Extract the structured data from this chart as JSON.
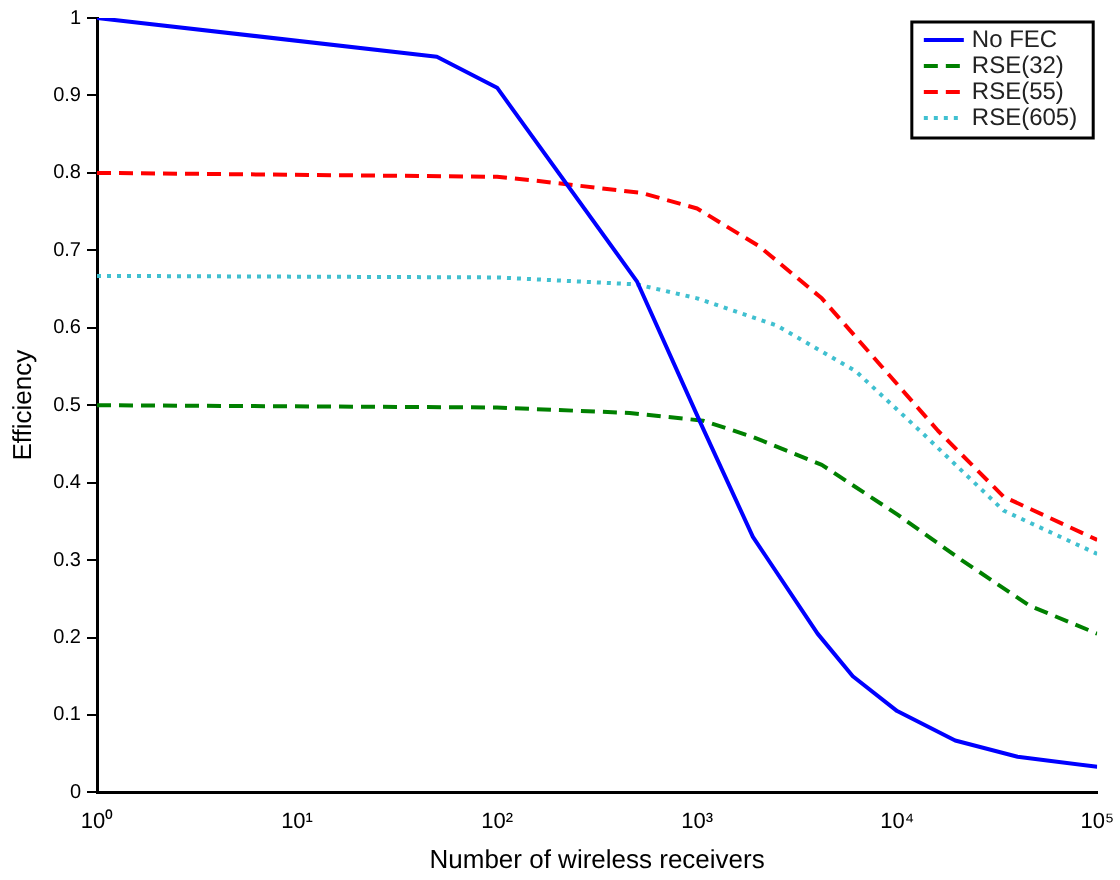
{
  "chart_data": {
    "type": "line",
    "xlabel": "Number of wireless receivers",
    "ylabel": "Efficiency",
    "log": "x",
    "xlim": [
      1,
      100000
    ],
    "ylim": [
      0,
      1
    ],
    "xticks": [
      {
        "value": 1,
        "label": "10⁰"
      },
      {
        "value": 10,
        "label": "10¹"
      },
      {
        "value": 100,
        "label": "10²"
      },
      {
        "value": 1000,
        "label": "10³"
      },
      {
        "value": 10000,
        "label": "10⁴"
      },
      {
        "value": 100000,
        "label": "10⁵"
      }
    ],
    "yticks": [
      0,
      0.1,
      0.2,
      0.3,
      0.4,
      0.5,
      0.6,
      0.7,
      0.8,
      0.9,
      1
    ],
    "grid": false,
    "legend": "top right",
    "marker": "none",
    "series": [
      {
        "name": "No FEC",
        "color": "#0000ff",
        "line_style": "solid",
        "x": [
          1,
          50,
          100,
          500,
          1070,
          1900,
          4000,
          6000,
          10000,
          19500,
          40000,
          100000
        ],
        "values": [
          1,
          0.95,
          0.91,
          0.66,
          0.47,
          0.33,
          0.205,
          0.15,
          0.105,
          0.067,
          0.046,
          0.033
        ]
      },
      {
        "name": "RSE(32)",
        "color": "#008000",
        "line_style": "dashed",
        "x": [
          1,
          100,
          460,
          1070,
          1900,
          4200,
          10000,
          21000,
          46000,
          100000
        ],
        "values": [
          0.5,
          0.497,
          0.49,
          0.48,
          0.459,
          0.423,
          0.359,
          0.3,
          0.241,
          0.205
        ]
      },
      {
        "name": "RSE(55)",
        "color": "#ff0000",
        "line_style": "dashed",
        "x": [
          1,
          100,
          155,
          530,
          1000,
          2050,
          4200,
          8300,
          16000,
          34000,
          100000
        ],
        "values": [
          0.8,
          0.795,
          0.79,
          0.774,
          0.754,
          0.705,
          0.638,
          0.551,
          0.467,
          0.382,
          0.326
        ]
      },
      {
        "name": "RSE(605)",
        "color": "#40c0d0",
        "line_style": "dotted",
        "x": [
          1,
          100,
          500,
          1000,
          2500,
          6200,
          13000,
          34000,
          100000
        ],
        "values": [
          0.667,
          0.665,
          0.656,
          0.638,
          0.603,
          0.544,
          0.467,
          0.364,
          0.308
        ]
      }
    ]
  }
}
